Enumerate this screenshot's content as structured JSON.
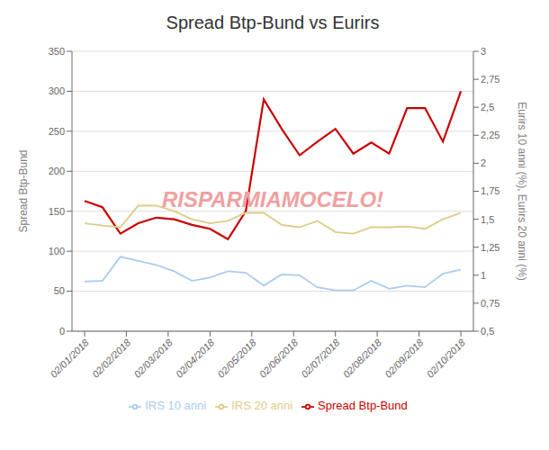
{
  "chart_data": {
    "type": "line",
    "title": "Spread Btp-Bund vs Eurirs",
    "y_label": "Spread Btp-Bund",
    "y2_label": "Eurirs 10 anni (%), Eurirs 20 anni (%)",
    "annotations": [
      "RISPARMIAMOCELO!"
    ],
    "x": [
      0,
      0.42857142857142855,
      0.8571428571428571,
      1.2857142857142856,
      1.7142857142857142,
      2.142857142857143,
      2.571428571428571,
      3,
      3.4285714285714284,
      3.8571428571428568,
      4.285714285714286,
      4.714285714285714,
      5.142857142857142,
      5.571428571428571,
      6,
      6.428571428571428,
      6.857142857142857,
      7.285714285714286,
      7.7142857142857135,
      8.142857142857142,
      8.571428571428571,
      9
    ],
    "xlim": [
      -0.3,
      9.3
    ],
    "xticks": [
      {
        "value": 0,
        "label": "02/01/2018"
      },
      {
        "value": 1,
        "label": "02/02/2018"
      },
      {
        "value": 2,
        "label": "02/03/2018"
      },
      {
        "value": 3,
        "label": "02/04/2018"
      },
      {
        "value": 4,
        "label": "02/05/2018"
      },
      {
        "value": 5,
        "label": "02/06/2018"
      },
      {
        "value": 6,
        "label": "02/07/2018"
      },
      {
        "value": 7,
        "label": "02/08/2018"
      },
      {
        "value": 8,
        "label": "02/09/2018"
      },
      {
        "value": 9,
        "label": "02/10/2018"
      }
    ],
    "series": [
      {
        "name": "Spread Btp-Bund",
        "color": "#cc0000",
        "values": [
          163,
          155,
          122,
          135,
          142,
          140,
          133,
          128,
          115,
          150,
          290,
          253,
          220,
          237,
          253,
          222,
          236,
          222,
          279,
          279,
          237,
          300
        ]
      },
      {
        "name": "IRS 10 anni",
        "color": "#aaccee",
        "values": [
          62,
          63,
          93,
          88,
          83,
          75,
          63,
          67,
          75,
          73,
          57,
          71,
          70,
          55,
          51,
          51,
          63,
          53,
          57,
          55,
          72,
          77
        ]
      },
      {
        "name": "IRS 20 anni",
        "color": "#ddcc88",
        "values": [
          135,
          132,
          130,
          157,
          157,
          150,
          140,
          135,
          138,
          148,
          148,
          133,
          130,
          138,
          124,
          122,
          130,
          130,
          131,
          128,
          140,
          148
        ]
      }
    ],
    "ylim": [
      0,
      350
    ],
    "yticks": [
      0,
      50,
      100,
      150,
      200,
      250,
      300,
      350
    ],
    "y2lim": [
      0.5,
      3.0
    ],
    "y2ticks": [
      {
        "value": 0.5,
        "label": "0,5"
      },
      {
        "value": 0.75,
        "label": "0,75"
      },
      1,
      {
        "value": 1.25,
        "label": "1,25"
      },
      {
        "value": 1.5,
        "label": "1,5"
      },
      {
        "value": 1.75,
        "label": "1,75"
      },
      2,
      {
        "value": 2.25,
        "label": "2,25"
      },
      {
        "value": 2.5,
        "label": "2,5"
      },
      {
        "value": 2.75,
        "label": "2,75"
      },
      3
    ],
    "grid": true,
    "legend": "bottom"
  }
}
